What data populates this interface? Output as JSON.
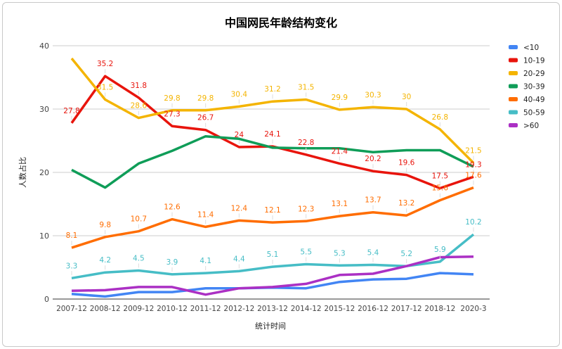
{
  "chart_data": {
    "type": "line",
    "title": "中国网民年龄结构变化",
    "xlabel": "统计时间",
    "ylabel": "人数占比",
    "ylim": [
      0,
      40
    ],
    "yticks": [
      0,
      10,
      20,
      30,
      40
    ],
    "grid": true,
    "legend_position": "right",
    "categories": [
      "2007-12",
      "2008-12",
      "2009-12",
      "2010-12",
      "2011-12",
      "2012-12",
      "2013-12",
      "2014-12",
      "2015-12",
      "2016-12",
      "2017-12",
      "2018-12",
      "2020-3"
    ],
    "series": [
      {
        "name": "<10",
        "color": "#4285f4",
        "values": [
          0.8,
          0.4,
          1.1,
          1.1,
          1.7,
          1.7,
          1.8,
          1.7,
          2.7,
          3.1,
          3.2,
          4.1,
          3.9
        ],
        "labels": false
      },
      {
        "name": "10-19",
        "color": "#e8140c",
        "values": [
          27.8,
          35.2,
          31.8,
          27.3,
          26.7,
          24,
          24.1,
          22.8,
          21.4,
          20.2,
          19.6,
          17.5,
          19.3
        ],
        "labels": true
      },
      {
        "name": "20-29",
        "color": "#f4b400",
        "values": [
          38,
          31.5,
          28.6,
          29.8,
          29.8,
          30.4,
          31.2,
          31.5,
          29.9,
          30.3,
          30,
          26.8,
          21.5
        ],
        "labels": true,
        "unlabeled_index": 0
      },
      {
        "name": "30-39",
        "color": "#0f9d58",
        "values": [
          20.4,
          17.6,
          21.4,
          23.4,
          25.7,
          25.3,
          23.9,
          23.8,
          23.8,
          23.2,
          23.5,
          23.5,
          20.9
        ],
        "labels": false
      },
      {
        "name": "40-49",
        "color": "#ff6d01",
        "values": [
          8.1,
          9.8,
          10.7,
          12.6,
          11.4,
          12.4,
          12.1,
          12.3,
          13.1,
          13.7,
          13.2,
          15.6,
          17.6
        ],
        "labels": true
      },
      {
        "name": "50-59",
        "color": "#46bdc6",
        "values": [
          3.3,
          4.2,
          4.5,
          3.9,
          4.1,
          4.4,
          5.1,
          5.5,
          5.3,
          5.4,
          5.2,
          5.9,
          10.2
        ],
        "labels": true
      },
      {
        "name": ">60",
        "color": "#ab30c4",
        "values": [
          1.3,
          1.4,
          1.9,
          1.9,
          0.7,
          1.7,
          1.9,
          2.4,
          3.8,
          4.0,
          5.2,
          6.6,
          6.7
        ],
        "labels": false
      }
    ]
  }
}
